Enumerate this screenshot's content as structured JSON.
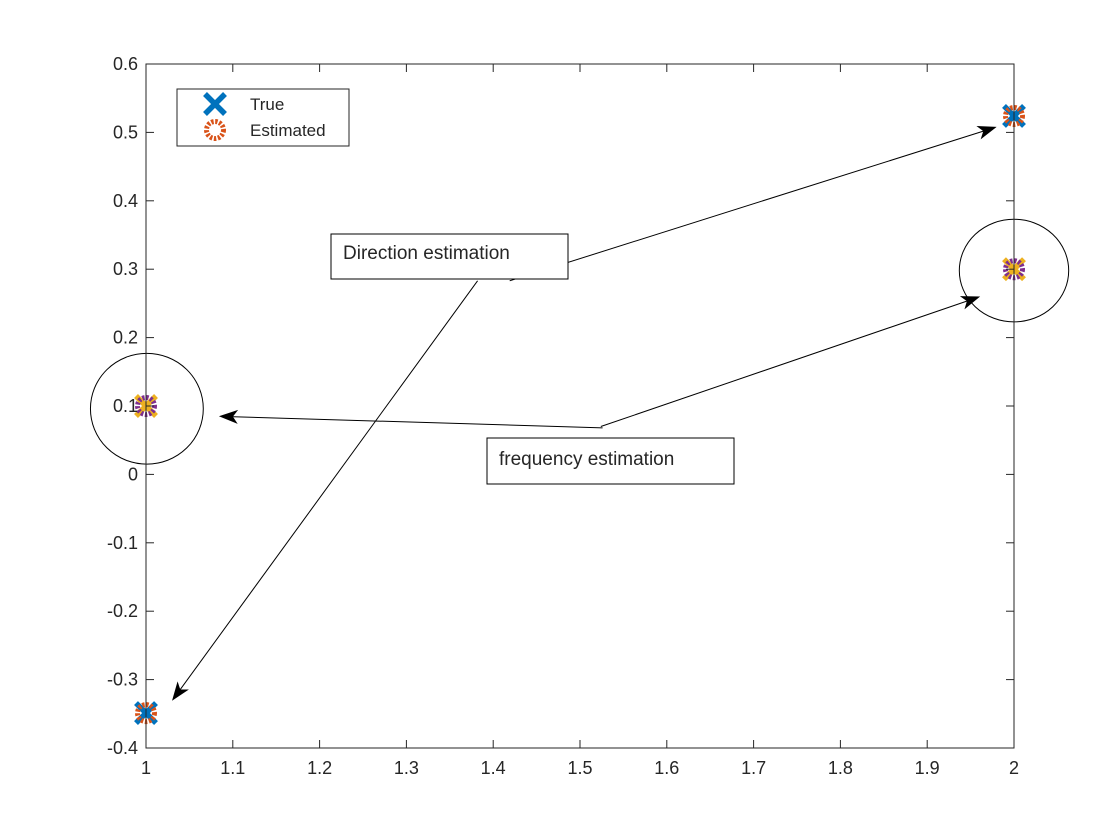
{
  "chart_data": {
    "type": "scatter",
    "title": "",
    "xlabel": "",
    "ylabel": "",
    "xlim": [
      1,
      2
    ],
    "ylim": [
      -0.4,
      0.6
    ],
    "grid": false,
    "box": true,
    "xticks": [
      "1",
      "1.1",
      "1.2",
      "1.3",
      "1.4",
      "1.5",
      "1.6",
      "1.7",
      "1.8",
      "1.9",
      "2"
    ],
    "yticks": [
      "-0.4",
      "-0.3",
      "-0.2",
      "-0.1",
      "0",
      "0.1",
      "0.2",
      "0.3",
      "0.4",
      "0.5",
      "0.6"
    ],
    "legend_position": "top-left",
    "series": [
      {
        "name": "True",
        "marker": "x",
        "color": "#0072BD",
        "points": [
          {
            "x": 2,
            "y": 0.524
          },
          {
            "x": 1,
            "y": -0.349
          }
        ]
      },
      {
        "name": "Estimated",
        "marker": "o",
        "color": "#D95319",
        "points": [
          {
            "x": 2,
            "y": 0.524
          },
          {
            "x": 1,
            "y": -0.349
          }
        ]
      },
      {
        "marker": "x",
        "color": "#EDB120",
        "points": [
          {
            "x": 2,
            "y": 0.3
          },
          {
            "x": 1,
            "y": 0.1
          }
        ]
      },
      {
        "marker": "o",
        "color": "#7E2F8E",
        "points": [
          {
            "x": 2,
            "y": 0.3
          },
          {
            "x": 1,
            "y": 0.1
          }
        ]
      }
    ],
    "annotations": [
      {
        "text": "Direction estimation",
        "arrows": [
          {
            "from": [
              1.419,
              0.283
            ],
            "to": [
              1.98,
              0.508
            ]
          },
          {
            "from": [
              1.382,
              0.283
            ],
            "to": [
              1.03,
              -0.331
            ]
          }
        ]
      },
      {
        "text": "frequency estimation",
        "arrows": [
          {
            "from": [
              1.524,
              0.07
            ],
            "to": [
              1.961,
              0.26
            ]
          },
          {
            "from": [
              1.526,
              0.068
            ],
            "to": [
              1.084,
              0.085
            ]
          }
        ]
      }
    ],
    "ellipses": [
      {
        "cx": 2,
        "cy": 0.298,
        "rx": 0.063,
        "ry": 0.075
      },
      {
        "cx": 1.001,
        "cy": 0.096,
        "rx": 0.065,
        "ry": 0.081
      }
    ]
  }
}
